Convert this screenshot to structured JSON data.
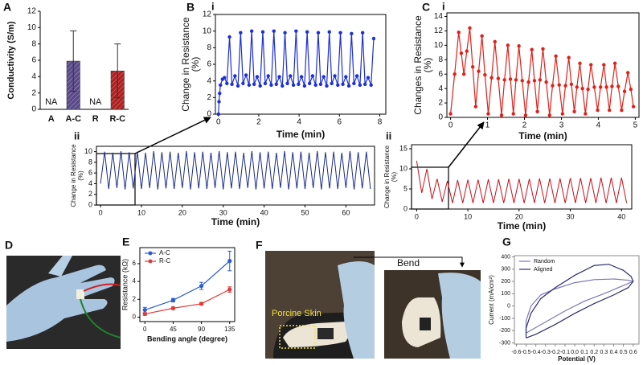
{
  "photos": {
    "D": {
      "panel": "D"
    },
    "F": {
      "panel": "F",
      "label": "Porcine Skin",
      "action": "Bend"
    }
  },
  "chart_data": [
    {
      "type": "bar",
      "panel": "A",
      "ylabel": [
        "Conductivity (S/m)"
      ],
      "categories": [
        "A",
        "A-C",
        "R",
        "R-C"
      ],
      "values": [
        null,
        5.9,
        null,
        4.7
      ],
      "errors": [
        null,
        3.7,
        null,
        3.3
      ],
      "value_labels": [
        "NA",
        null,
        "NA",
        null
      ],
      "colors": [
        null,
        "#5a4a8a",
        null,
        "#b02020"
      ],
      "ylim": [
        0,
        12
      ],
      "yticks": [
        0,
        2,
        4,
        6,
        8,
        10,
        12
      ]
    },
    {
      "type": "line",
      "panel": "B",
      "subpanel": "i",
      "xlabel": "Time (min)",
      "ylabel": [
        "Change in Resistance",
        "(%)"
      ],
      "markers": true,
      "color": "#1d2fd8",
      "x": [
        0,
        0.03,
        0.06,
        0.1,
        0.2,
        0.3,
        0.42,
        0.55,
        0.67,
        0.82,
        0.97,
        1.1,
        1.22,
        1.37,
        1.52,
        1.65,
        1.77,
        1.92,
        2.07,
        2.2,
        2.32,
        2.47,
        2.62,
        2.75,
        2.87,
        3.02,
        3.17,
        3.3,
        3.42,
        3.57,
        3.72,
        3.85,
        3.97,
        4.12,
        4.27,
        4.4,
        4.52,
        4.67,
        4.82,
        4.95,
        5.07,
        5.22,
        5.37,
        5.5,
        5.62,
        5.77,
        5.92,
        6.05,
        6.17,
        6.32,
        6.47,
        6.6,
        6.72,
        6.87,
        7.02,
        7.15,
        7.27,
        7.42,
        7.57,
        7.7
      ],
      "values": [
        0,
        1.5,
        2.5,
        3.5,
        4.2,
        4.4,
        3.7,
        9.3,
        3.6,
        4.6,
        3.4,
        9.8,
        3.7,
        4.7,
        3.5,
        10,
        3.6,
        4.5,
        3.4,
        9.9,
        3.7,
        4.6,
        3.5,
        10,
        3.6,
        4.5,
        3.4,
        9.8,
        3.7,
        4.6,
        3.5,
        10,
        3.6,
        4.5,
        3.4,
        9.9,
        3.7,
        4.6,
        3.5,
        9.8,
        3.6,
        4.5,
        3.4,
        9.9,
        3.7,
        4.6,
        3.5,
        9.8,
        3.6,
        4.5,
        3.4,
        9.7,
        3.7,
        4.6,
        3.5,
        9.8,
        3.6,
        4.4,
        3.5,
        9.1
      ],
      "xlim": [
        -0.15,
        8.3
      ],
      "xticks": [
        0,
        2,
        4,
        6,
        8
      ],
      "ylim": [
        0,
        12
      ],
      "yticks": [
        0,
        2,
        4,
        6,
        8,
        10,
        12
      ]
    },
    {
      "type": "line",
      "subpanel": "ii",
      "xlabel": "Time (min)",
      "ylabel": [
        "Change in Resistance",
        "(%)"
      ],
      "color": "#1a2a8a",
      "x": [
        0,
        1,
        2,
        3,
        4,
        5,
        6,
        7,
        8,
        9,
        10,
        11,
        12,
        13,
        14,
        15,
        16,
        17,
        18,
        19,
        20,
        21,
        22,
        23,
        24,
        25,
        26,
        27,
        28,
        29,
        30,
        31,
        32,
        33,
        34,
        35,
        36,
        37,
        38,
        39,
        40,
        41,
        42,
        43,
        44,
        45,
        46,
        47,
        48,
        49,
        50,
        51,
        52,
        53,
        54,
        55,
        56,
        57,
        58,
        59,
        60,
        61,
        62,
        63,
        64,
        65,
        66
      ],
      "values": [
        4,
        10,
        3,
        9.8,
        3.2,
        10.1,
        2.9,
        9.9,
        3.1,
        10,
        3,
        9.8,
        3.2,
        10.1,
        2.9,
        9.9,
        3.1,
        10,
        3,
        9.8,
        3.2,
        10.1,
        2.9,
        9.9,
        3.1,
        10,
        3,
        9.8,
        3.2,
        10.1,
        2.9,
        9.9,
        3.1,
        10,
        3,
        9.8,
        3.2,
        10.1,
        2.9,
        9.9,
        3.1,
        10,
        3,
        9.8,
        3.2,
        10.1,
        2.9,
        9.9,
        3.1,
        10,
        3,
        9.8,
        3.2,
        10.1,
        2.9,
        9.9,
        3.1,
        10,
        3,
        9.8,
        3.2,
        10.1,
        2.9,
        9.9,
        3.1,
        10,
        3
      ],
      "xlim": [
        -1,
        67
      ],
      "xticks": [
        0,
        10,
        20,
        30,
        40,
        50,
        60
      ],
      "ylim": [
        0,
        11
      ],
      "yticks": [
        0,
        2,
        4,
        6,
        8,
        10
      ]
    },
    {
      "type": "line",
      "panel": "C",
      "subpanel": "i",
      "xlabel": "Time (min)",
      "ylabel": [
        "Changes in Resistance",
        "(%)"
      ],
      "markers": true,
      "color": "#e0201a",
      "x": [
        0,
        0.11,
        0.22,
        0.29,
        0.36,
        0.44,
        0.52,
        0.6,
        0.68,
        0.76,
        0.85,
        0.93,
        1.02,
        1.11,
        1.2,
        1.29,
        1.38,
        1.46,
        1.55,
        1.62,
        1.7,
        1.77,
        1.85,
        1.94,
        2.03,
        2.11,
        2.2,
        2.27,
        2.35,
        2.42,
        2.5,
        2.59,
        2.68,
        2.76,
        2.85,
        2.94,
        3.03,
        3.11,
        3.2,
        3.27,
        3.35,
        3.42,
        3.5,
        3.57,
        3.65,
        3.72,
        3.8,
        3.89,
        3.98,
        4.06,
        4.15,
        4.22,
        4.3,
        4.37,
        4.45,
        4.54,
        4.63,
        4.71,
        4.8,
        4.88,
        4.95
      ],
      "values": [
        0.5,
        6,
        11.8,
        8.9,
        6,
        9.2,
        12.4,
        7,
        1.5,
        6.4,
        11.3,
        5.9,
        0.5,
        5.5,
        10.5,
        5.4,
        0.3,
        5.2,
        10,
        5.3,
        0.5,
        5.2,
        9.9,
        5.1,
        0.3,
        4.9,
        9.4,
        5.1,
        0.8,
        5.2,
        9.5,
        4.9,
        0.3,
        4.4,
        8.5,
        4.5,
        0.5,
        4.4,
        8.3,
        4.6,
        0.8,
        4.2,
        7.5,
        4,
        0.5,
        3.9,
        7.3,
        4.2,
        1,
        4.2,
        7.3,
        4.2,
        1,
        4.3,
        7.5,
        4.3,
        1,
        3.6,
        6.2,
        3.9,
        1.5
      ],
      "xlim": [
        -0.1,
        5.1
      ],
      "xticks": [
        0,
        1,
        2,
        3,
        4,
        5
      ],
      "ylim": [
        0,
        14.5
      ],
      "yticks": [
        0,
        2,
        4,
        6,
        8,
        10,
        12,
        14
      ]
    },
    {
      "type": "line",
      "subpanel": "ii",
      "xlabel": "Time (min)",
      "ylabel": [
        "Change in Resistance",
        "(%)"
      ],
      "color": "#c8101a",
      "x": [
        0,
        1,
        2,
        3,
        4,
        5,
        6,
        7,
        8,
        9,
        10,
        11,
        12,
        13,
        14,
        15,
        16,
        17,
        18,
        19,
        20,
        21,
        22,
        23,
        24,
        25,
        26,
        27,
        28,
        29,
        30,
        31,
        32,
        33,
        34,
        35,
        36,
        37,
        38,
        39,
        40,
        41
      ],
      "values": [
        12,
        4,
        10,
        2.5,
        7.5,
        1.8,
        7,
        1.5,
        7.2,
        1.5,
        7.3,
        1.5,
        7.3,
        1.5,
        7.4,
        1.5,
        7.4,
        1.5,
        7.5,
        1.5,
        7.5,
        1.5,
        7.5,
        1.5,
        7.6,
        1.5,
        7.6,
        1.5,
        7.6,
        1.5,
        7.7,
        1.5,
        7.7,
        1.5,
        7.7,
        1.5,
        7.8,
        1.5,
        7.8,
        1.5,
        7.8,
        1.5
      ],
      "xlim": [
        -1,
        42
      ],
      "xticks": [
        0,
        10,
        20,
        30,
        40
      ],
      "ylim": [
        0,
        16
      ],
      "yticks": [
        0,
        5,
        10,
        15
      ]
    },
    {
      "type": "line",
      "panel": "E",
      "xlabel": "Bending angle (degree)",
      "ylabel": [
        "Resistance (kΩ)"
      ],
      "markers": true,
      "legend": "upper left",
      "x": [
        0,
        45,
        90,
        135
      ],
      "series": [
        {
          "name": "A-C",
          "color": "#2a5bd7",
          "values": [
            0.8,
            1.9,
            3.5,
            6.3
          ],
          "errors": [
            0.3,
            0.2,
            0.4,
            1.1
          ]
        },
        {
          "name": "R-C",
          "color": "#e03a3a",
          "values": [
            0.35,
            1,
            1.5,
            3.1
          ],
          "errors": [
            0.15,
            0.15,
            0.15,
            0.3
          ]
        }
      ],
      "xlim": [
        -8,
        143
      ],
      "xticks": [
        0,
        45,
        90,
        135
      ],
      "ylim": [
        -0.5,
        7.8
      ],
      "yticks": [
        0,
        2,
        4,
        6
      ]
    },
    {
      "type": "line",
      "panel": "G",
      "xlabel": "Potential (V)",
      "ylabel": [
        "Current (mA/cm²)"
      ],
      "legend": "upper left",
      "series": [
        {
          "name": "Random",
          "color": "#7a78b8",
          "x": [
            -0.5,
            -0.3,
            -0.1,
            0.1,
            0.3,
            0.45,
            0.6,
            0.55,
            0.4,
            0.2,
            0,
            -0.2,
            -0.35,
            -0.45,
            -0.5,
            -0.5
          ],
          "values": [
            -220,
            -130,
            -40,
            40,
            100,
            150,
            200,
            210,
            220,
            215,
            190,
            140,
            90,
            0,
            -120,
            -220
          ]
        },
        {
          "name": "Aligned",
          "color": "#2d2d6e",
          "x": [
            -0.5,
            -0.4,
            -0.2,
            0,
            0.2,
            0.4,
            0.55,
            0.6,
            0.58,
            0.5,
            0.35,
            0.2,
            0,
            -0.2,
            -0.35,
            -0.45,
            -0.5,
            -0.5
          ],
          "values": [
            -260,
            -230,
            -150,
            -60,
            20,
            90,
            150,
            200,
            240,
            290,
            340,
            330,
            250,
            150,
            60,
            -60,
            -180,
            -260
          ]
        }
      ],
      "xlim": [
        -0.62,
        0.66
      ],
      "xticks": [
        -0.6,
        -0.5,
        -0.4,
        -0.3,
        -0.2,
        -0.1,
        {
          "value": 0,
          "label": "0.0"
        },
        0.1,
        0.2,
        0.3,
        0.4,
        0.5,
        0.6
      ],
      "ylim": [
        -310,
        410
      ],
      "yticks": [
        -300,
        -200,
        -100,
        0,
        100,
        200,
        300,
        400
      ]
    }
  ]
}
